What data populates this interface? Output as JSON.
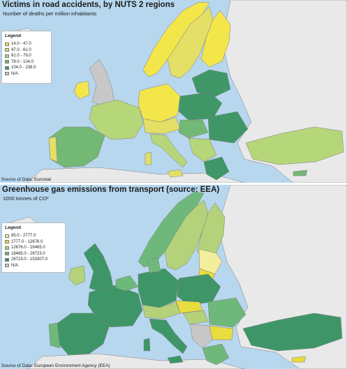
{
  "top_map": {
    "title": "Victims in road accidents, by NUTS 2 regions",
    "subtitle": "Number of deaths per million inhabitants",
    "source": "Source of Data: Eurostat",
    "legend": {
      "title": "Legend",
      "items": [
        {
          "label": "14.0 - 47.0",
          "color": "#f5e84a"
        },
        {
          "label": "47.0 - 61.0",
          "color": "#e2e066"
        },
        {
          "label": "61.0 - 79.0",
          "color": "#b6d67a"
        },
        {
          "label": "79.0 - 104.0",
          "color": "#73b874"
        },
        {
          "label": "104.0 - 238.0",
          "color": "#3f9767"
        },
        {
          "label": "N/A",
          "color": "#c8c8c8"
        }
      ]
    }
  },
  "bottom_map": {
    "title": "Greenhouse gas emissions from transport (source: EEA)",
    "subtitle": "1000 tonnes of CO²",
    "source": "Source of Data: European Environment Agency (EEA)",
    "legend": {
      "title": "Legend",
      "items": [
        {
          "label": "85.0 - 2777.0",
          "color": "#f3ee9c"
        },
        {
          "label": "2777.0 - 12676.0",
          "color": "#e8dc3e"
        },
        {
          "label": "12676.0 - 16465.0",
          "color": "#b4d27a"
        },
        {
          "label": "16465.0 - 26723.0",
          "color": "#6fb87c"
        },
        {
          "label": "26723.0 - 153307.0",
          "color": "#3e9668"
        },
        {
          "label": "N/A",
          "color": "#c8c8c8"
        }
      ]
    }
  },
  "colors": {
    "sea": "#b7d7ef",
    "non_eu_land": "#e9e9e9",
    "border": "#7d7d7d"
  }
}
